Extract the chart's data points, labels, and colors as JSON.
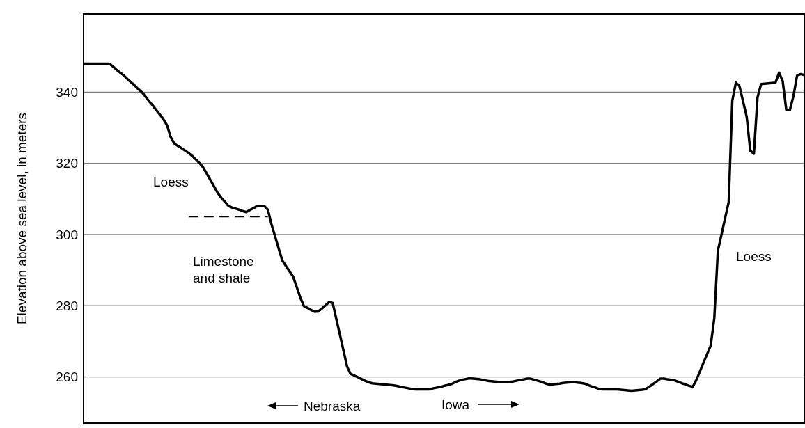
{
  "chart_data": {
    "type": "line",
    "ylabel": "Elevation above sea level, in meters",
    "ylim": [
      247,
      362
    ],
    "yticks": [
      260,
      280,
      300,
      320,
      340
    ],
    "tick_labels": "y",
    "grid": "y",
    "marker": "none",
    "categories": [
      null,
      null,
      null,
      null,
      null,
      null,
      null,
      null,
      null,
      null,
      null,
      null,
      null,
      null,
      null,
      null,
      null,
      null,
      null,
      null,
      null,
      null,
      null,
      null,
      null,
      null,
      null,
      null,
      null,
      null,
      null,
      null,
      null,
      null,
      null,
      null,
      null,
      null,
      null,
      null,
      null,
      null,
      null,
      null,
      null,
      null,
      null,
      null,
      null,
      null,
      null,
      null,
      null,
      null,
      null,
      null,
      null,
      null,
      null,
      null,
      null,
      null,
      null,
      null,
      null,
      null,
      null,
      null,
      null,
      null,
      null,
      null,
      null,
      null,
      null,
      null,
      null,
      null,
      null,
      null,
      null,
      null,
      null,
      null,
      null,
      null,
      null,
      null,
      null,
      null,
      null,
      null,
      null,
      null,
      null,
      null,
      null,
      null,
      null,
      null,
      null,
      null,
      null,
      null,
      null,
      null,
      null,
      null,
      null,
      null,
      null,
      null,
      null,
      null,
      null,
      null,
      null,
      null,
      null,
      null,
      null,
      null,
      null,
      null,
      null,
      null,
      null,
      null,
      null,
      null,
      null,
      null,
      null,
      null,
      null,
      null,
      null,
      null,
      null,
      null,
      null,
      null,
      null,
      null,
      null,
      null,
      null,
      null,
      null,
      null,
      null,
      null,
      null,
      null,
      null,
      null,
      null,
      null,
      null,
      null,
      null,
      null,
      null,
      null,
      null,
      null,
      null,
      null,
      null,
      null,
      null,
      null,
      null,
      null,
      null,
      null,
      null,
      null,
      null,
      null,
      null,
      null,
      null,
      null,
      null,
      null,
      null,
      null,
      null,
      null,
      null,
      null,
      null,
      null,
      null,
      null,
      null,
      null,
      null,
      null,
      null
    ],
    "series": [
      {
        "color": "#000000",
        "line_style": "solid",
        "values": [
          348,
          348,
          348,
          348,
          348,
          348,
          348,
          348,
          347.2,
          346.3,
          345.5,
          344.7,
          343.7,
          342.8,
          341.9,
          340.9,
          340,
          338.8,
          337.5,
          336.3,
          335,
          333.7,
          332.4,
          330.7,
          327.4,
          325.6,
          324.9,
          324.3,
          323.6,
          322.9,
          322.1,
          321.1,
          320.1,
          318.9,
          317.2,
          315.4,
          313.6,
          311.8,
          310.4,
          309.3,
          308.1,
          307.6,
          307.3,
          307,
          306.6,
          306.3,
          306.9,
          307.4,
          308,
          308,
          308,
          307,
          302.9,
          299.5,
          296.1,
          292.7,
          291.2,
          289.7,
          288.2,
          285.3,
          282.3,
          279.9,
          279.4,
          278.8,
          278.3,
          278.4,
          279.2,
          280.1,
          281,
          280.8,
          276.3,
          271.9,
          267.4,
          262.9,
          260.8,
          260.4,
          259.9,
          259.4,
          258.9,
          258.5,
          258.2,
          258.1,
          258,
          257.9,
          257.8,
          257.7,
          257.6,
          257.4,
          257.2,
          257,
          256.8,
          256.6,
          256.5,
          256.5,
          256.5,
          256.5,
          256.5,
          256.8,
          257,
          257.2,
          257.5,
          257.7,
          258,
          258.5,
          258.9,
          259.2,
          259.4,
          259.6,
          259.5,
          259.4,
          259.3,
          259.1,
          258.9,
          258.8,
          258.7,
          258.6,
          258.6,
          258.6,
          258.6,
          258.7,
          258.9,
          259.1,
          259.3,
          259.5,
          259.5,
          259.2,
          258.9,
          258.6,
          258.2,
          257.9,
          257.9,
          258,
          258.1,
          258.3,
          258.4,
          258.5,
          258.6,
          258.4,
          258.3,
          258.1,
          257.7,
          257.3,
          257,
          256.6,
          256.5,
          256.5,
          256.5,
          256.5,
          256.5,
          256.4,
          256.3,
          256.2,
          256.1,
          256.2,
          256.3,
          256.4,
          256.6,
          257.3,
          258,
          258.7,
          259.5,
          259.5,
          259.3,
          259.2,
          259,
          258.6,
          258.2,
          257.9,
          257.5,
          257.2,
          259.1,
          261.5,
          264,
          266.4,
          268.8,
          276.5,
          295.5,
          300,
          304.6,
          309.1,
          337.6,
          342.7,
          341.7,
          337.4,
          333.1,
          323.6,
          322.7,
          338.5,
          342.3,
          342.4,
          342.5,
          342.6,
          342.7,
          345.5,
          343.1,
          335,
          335,
          339,
          344.7,
          345.1,
          344.8
        ]
      },
      {
        "color": "#000000",
        "line_style": "dashed",
        "values": [
          null,
          null,
          null,
          null,
          null,
          null,
          null,
          null,
          null,
          null,
          null,
          null,
          null,
          null,
          null,
          null,
          null,
          null,
          null,
          null,
          null,
          null,
          null,
          null,
          null,
          null,
          null,
          null,
          null,
          305,
          305,
          305,
          305,
          305,
          305,
          305,
          305,
          305,
          305,
          305,
          305,
          305,
          305,
          305,
          305,
          305,
          305,
          305,
          305,
          305,
          305,
          305,
          null,
          null,
          null,
          null,
          null,
          null,
          null,
          null,
          null,
          null,
          null,
          null,
          null,
          null,
          null,
          null,
          null,
          null,
          null,
          null,
          null,
          null,
          null,
          null,
          null,
          null,
          null,
          null,
          null,
          null,
          null,
          null,
          null,
          null,
          null,
          null,
          null,
          null,
          null,
          null,
          null,
          null,
          null,
          null,
          null,
          null,
          null,
          null,
          null,
          null,
          null,
          null,
          null,
          null,
          null,
          null,
          null,
          null,
          null,
          null,
          null,
          null,
          null,
          null,
          null,
          null,
          null,
          null,
          null,
          null,
          null,
          null,
          null,
          null,
          null,
          null,
          null,
          null,
          null,
          null,
          null,
          null,
          null,
          null,
          null,
          null,
          null,
          null,
          null,
          null,
          null,
          null,
          null,
          null,
          null,
          null,
          null,
          null,
          null,
          null,
          null,
          null,
          null,
          null,
          null,
          null,
          null,
          null,
          null,
          null,
          null,
          null,
          null,
          null,
          null,
          null,
          null,
          null,
          null,
          null,
          null,
          null,
          null,
          null,
          null,
          null,
          null,
          null,
          null,
          null,
          null,
          null,
          null,
          null,
          null,
          null,
          null,
          null,
          null,
          null,
          null,
          null,
          null,
          null,
          null,
          null,
          null,
          null,
          null
        ]
      }
    ],
    "annotations": [
      "Loess",
      "Limestone and shale",
      "Loess",
      "Nebraska",
      "Iowa"
    ]
  }
}
